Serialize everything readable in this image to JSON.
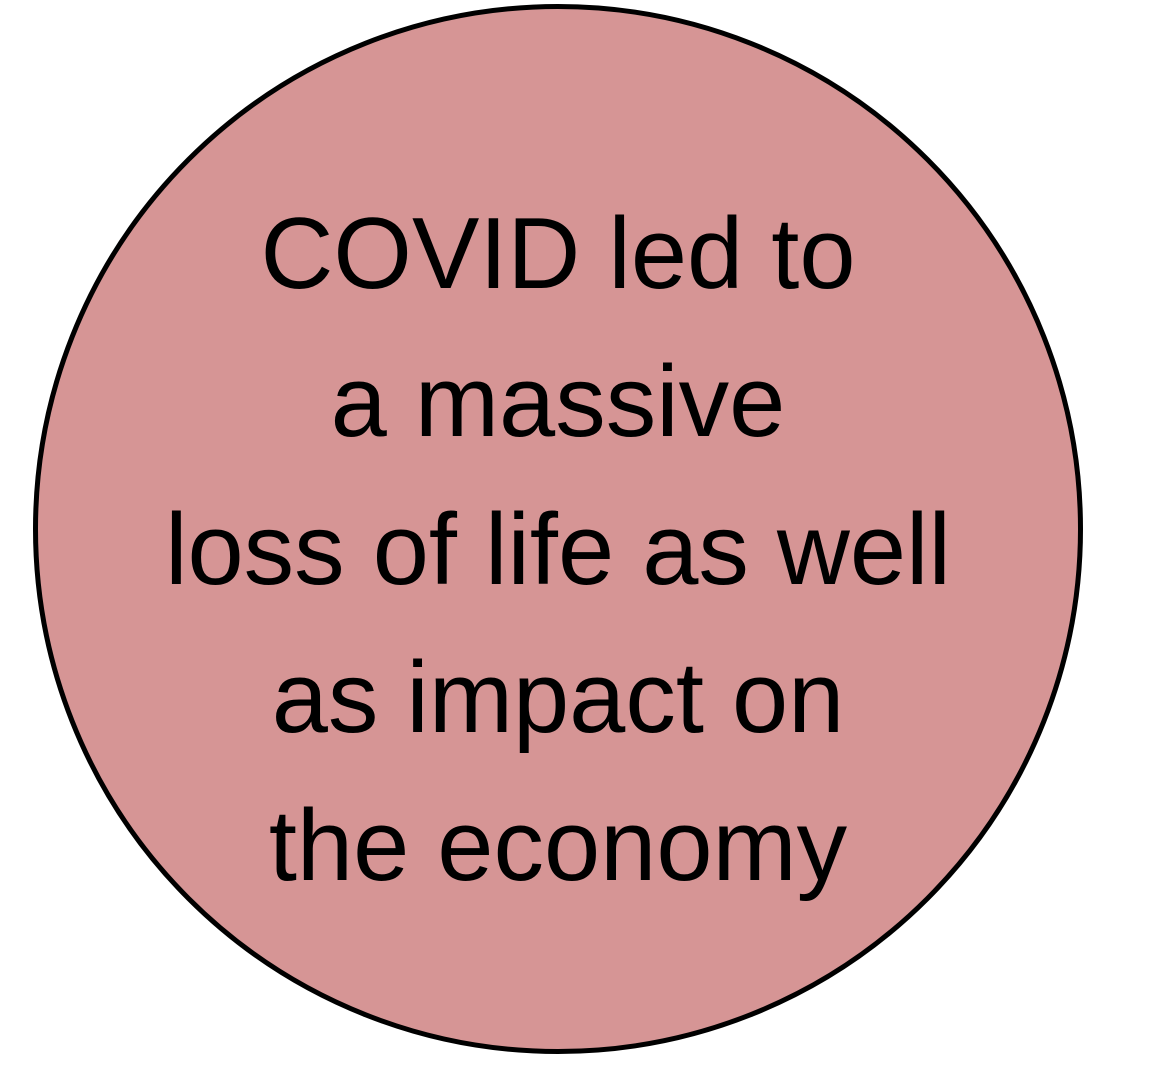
{
  "bubble": {
    "fill_color": "#d69595",
    "border_color": "#000000",
    "lines": [
      "COVID led to",
      "a massive",
      "loss of life as well",
      "as impact on",
      "the economy"
    ]
  }
}
